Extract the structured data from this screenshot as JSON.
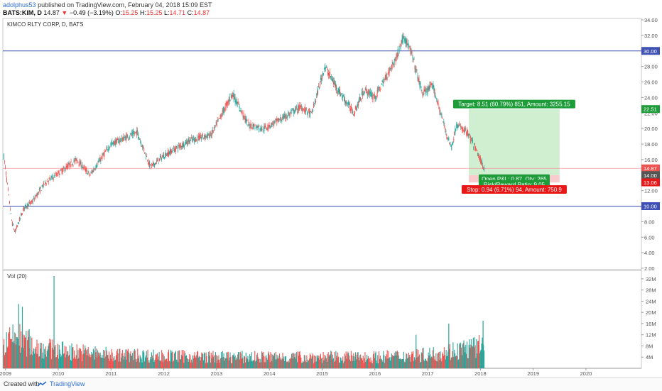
{
  "header": {
    "author": "adolphus53",
    "published": "published on TradingView.com, February 04, 2018 15:09 EST",
    "symbol": "BATS:KIM, D",
    "last": "14.87",
    "change": "−0.49 (−3.19%)",
    "open_label": "O:",
    "open": "15.25",
    "high_label": "H:",
    "high": "15.25",
    "low_label": "L:",
    "low": "14.71",
    "close_label": "C:",
    "close": "14.87"
  },
  "footer": {
    "created": "Created with",
    "brand": "TradingView"
  },
  "colors": {
    "up": "#26a69a",
    "down": "#ef5350",
    "level_line": "#3f51b5",
    "target_zone": "#c8ebc8",
    "stop_zone": "#f7c6c6",
    "target_badge": "#1e9c3a",
    "stop_badge": "#e81818"
  },
  "chart_data": [
    {
      "type": "candlestick",
      "title": "KIMCO RLTY CORP, D, BATS",
      "x": [
        "2009",
        "2010",
        "2011",
        "2012",
        "2013",
        "2014",
        "2015",
        "2016",
        "2017",
        "2018",
        "2019",
        "2020"
      ],
      "y_axis": {
        "ylim": [
          2,
          34
        ],
        "ticks": [
          "2.00",
          "4.00",
          "6.00",
          "8.00",
          "10.00",
          "12.00",
          "14.00",
          "16.00",
          "18.00",
          "20.00",
          "22.00",
          "24.00",
          "26.00",
          "28.00",
          "30.00",
          "32.00",
          "34.00"
        ]
      },
      "price_path": [
        {
          "x": 2008.95,
          "y": 17.5
        },
        {
          "x": 2009.05,
          "y": 12.0
        },
        {
          "x": 2009.12,
          "y": 8.0
        },
        {
          "x": 2009.18,
          "y": 6.6
        },
        {
          "x": 2009.35,
          "y": 9.8
        },
        {
          "x": 2009.5,
          "y": 10.5
        },
        {
          "x": 2009.75,
          "y": 13.0
        },
        {
          "x": 2010.0,
          "y": 14.2
        },
        {
          "x": 2010.35,
          "y": 16.0
        },
        {
          "x": 2010.6,
          "y": 14.0
        },
        {
          "x": 2011.0,
          "y": 18.0
        },
        {
          "x": 2011.5,
          "y": 19.5
        },
        {
          "x": 2011.75,
          "y": 15.0
        },
        {
          "x": 2012.0,
          "y": 16.5
        },
        {
          "x": 2012.5,
          "y": 18.5
        },
        {
          "x": 2012.9,
          "y": 19.2
        },
        {
          "x": 2013.3,
          "y": 24.5
        },
        {
          "x": 2013.6,
          "y": 20.5
        },
        {
          "x": 2013.9,
          "y": 20.0
        },
        {
          "x": 2014.3,
          "y": 21.5
        },
        {
          "x": 2014.6,
          "y": 22.8
        },
        {
          "x": 2014.8,
          "y": 21.8
        },
        {
          "x": 2015.05,
          "y": 28.0
        },
        {
          "x": 2015.3,
          "y": 25.0
        },
        {
          "x": 2015.6,
          "y": 22.0
        },
        {
          "x": 2015.8,
          "y": 25.0
        },
        {
          "x": 2016.0,
          "y": 24.0
        },
        {
          "x": 2016.4,
          "y": 29.0
        },
        {
          "x": 2016.55,
          "y": 32.0
        },
        {
          "x": 2016.7,
          "y": 29.5
        },
        {
          "x": 2016.9,
          "y": 24.5
        },
        {
          "x": 2017.1,
          "y": 25.5
        },
        {
          "x": 2017.35,
          "y": 19.5
        },
        {
          "x": 2017.45,
          "y": 17.5
        },
        {
          "x": 2017.55,
          "y": 20.5
        },
        {
          "x": 2017.75,
          "y": 19.5
        },
        {
          "x": 2017.9,
          "y": 17.5
        },
        {
          "x": 2018.07,
          "y": 14.87
        }
      ],
      "horizontal_levels": [
        {
          "y": 30.0,
          "label": "30.00"
        },
        {
          "y": 10.0,
          "label": "10.00"
        }
      ],
      "price_labels": [
        {
          "y": 22.51,
          "label": "22.51"
        },
        {
          "y": 14.87,
          "label": "14.87"
        },
        {
          "y": 14.0,
          "label": "14.00"
        },
        {
          "y": 13.06,
          "label": "13.06"
        }
      ],
      "position": {
        "entry": 14.0,
        "target": 22.51,
        "stop": 13.06,
        "x_start": 2017.78,
        "x_end": 2019.5,
        "target_label": "Target: 8.51 (60.79%) 851, Amount: 3255.15",
        "pnl_label": "Open P&L: 0.87, Qty: 265",
        "rr_label": "Risk/Reward Ratio: 9.05",
        "stop_label": "Stop: 0.94 (6.71%) 94, Amount: 750.9"
      }
    },
    {
      "type": "bar",
      "title": "Vol (20)",
      "y_axis": {
        "ylim": [
          0,
          34
        ],
        "ticks": [
          "4M",
          "8M",
          "12M",
          "16M",
          "20M",
          "24M",
          "28M",
          "32M"
        ]
      },
      "volume_profile_millions": [
        {
          "x": 2008.95,
          "y": 10
        },
        {
          "x": 2009.2,
          "y": 14
        },
        {
          "x": 2009.5,
          "y": 10
        },
        {
          "x": 2010.0,
          "y": 8
        },
        {
          "x": 2011.0,
          "y": 6
        },
        {
          "x": 2013.0,
          "y": 5
        },
        {
          "x": 2016.0,
          "y": 5
        },
        {
          "x": 2017.0,
          "y": 6
        },
        {
          "x": 2017.5,
          "y": 8
        },
        {
          "x": 2018.07,
          "y": 10
        }
      ],
      "spikes_millions": [
        {
          "x": 2009.25,
          "y": 23
        },
        {
          "x": 2009.32,
          "y": 22
        },
        {
          "x": 2009.45,
          "y": 14
        },
        {
          "x": 2009.92,
          "y": 33
        },
        {
          "x": 2016.78,
          "y": 12
        },
        {
          "x": 2017.4,
          "y": 16
        },
        {
          "x": 2018.05,
          "y": 17
        }
      ]
    }
  ]
}
